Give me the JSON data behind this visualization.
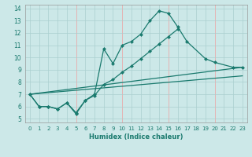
{
  "xlabel": "Humidex (Indice chaleur)",
  "bg_color": "#cce8e8",
  "grid_color_teal": "#aacfcf",
  "grid_color_pink": "#e8aaaa",
  "line_color": "#1a7a6e",
  "xlim": [
    -0.5,
    23.5
  ],
  "ylim": [
    4.7,
    14.3
  ],
  "xticks": [
    0,
    1,
    2,
    3,
    4,
    5,
    6,
    7,
    8,
    9,
    10,
    11,
    12,
    13,
    14,
    15,
    16,
    17,
    18,
    19,
    20,
    21,
    22,
    23
  ],
  "yticks": [
    5,
    6,
    7,
    8,
    9,
    10,
    11,
    12,
    13,
    14
  ],
  "line1_x": [
    0,
    1,
    2,
    3,
    4,
    5,
    6,
    7,
    8,
    9,
    10,
    11,
    12,
    13,
    14,
    15,
    16,
    17,
    19,
    20,
    22,
    23
  ],
  "line1_y": [
    7.0,
    6.0,
    6.0,
    5.8,
    6.3,
    5.4,
    6.5,
    7.0,
    10.7,
    9.5,
    11.0,
    11.3,
    11.9,
    13.0,
    13.8,
    13.6,
    12.5,
    11.3,
    9.9,
    9.6,
    9.2,
    9.2
  ],
  "line2_x": [
    0,
    1,
    2,
    3,
    4,
    5,
    6,
    7,
    8,
    9,
    10,
    11,
    12,
    13,
    14,
    15,
    16
  ],
  "line2_y": [
    7.0,
    6.0,
    6.0,
    5.8,
    6.3,
    5.5,
    6.5,
    6.9,
    7.8,
    8.2,
    8.8,
    9.3,
    9.9,
    10.5,
    11.1,
    11.7,
    12.3
  ],
  "line3_x": [
    0,
    23
  ],
  "line3_y": [
    7.0,
    9.2
  ],
  "line4_x": [
    0,
    23
  ],
  "line4_y": [
    7.0,
    8.5
  ],
  "red_xticks": [
    5,
    10,
    15,
    20
  ]
}
